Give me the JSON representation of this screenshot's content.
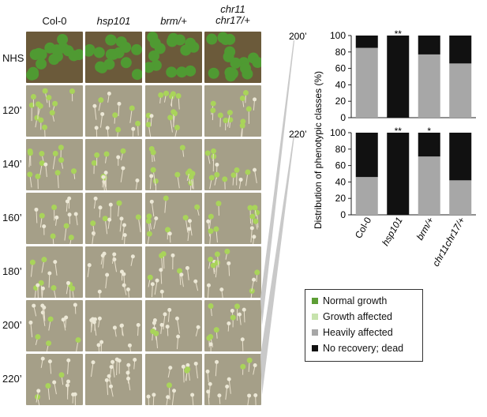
{
  "columns": [
    {
      "label": "Col-0",
      "italic": false
    },
    {
      "label": "hsp101",
      "italic": true
    },
    {
      "label": "brm/+",
      "italic": true
    },
    {
      "label": "chr11\nchr17/+",
      "italic": true
    }
  ],
  "rows": [
    "NHS",
    "120’",
    "140’",
    "160’",
    "180’",
    "200’",
    "220’"
  ],
  "chart_data": [
    {
      "type": "bar",
      "title": "",
      "panel_label": "200’",
      "xlabel": "",
      "ylabel": "Distribution of phenotypic classes (%)",
      "ylim": [
        0,
        100
      ],
      "yticks": [
        "0",
        "20",
        "40",
        "60",
        "80",
        "100"
      ],
      "categories": [
        "Col-0",
        "hsp101",
        "brm/+",
        "chr11chr17/+"
      ],
      "stacked": true,
      "series": [
        {
          "name": "Normal growth",
          "color": "#5d9e35",
          "values": [
            0,
            0,
            0,
            0
          ]
        },
        {
          "name": "Growth affected",
          "color": "#c7e3ad",
          "values": [
            0,
            0,
            0,
            0
          ]
        },
        {
          "name": "Heavily affected",
          "color": "#a7a7a7",
          "values": [
            85,
            0,
            77,
            66
          ]
        },
        {
          "name": "No recovery; dead",
          "color": "#111111",
          "values": [
            15,
            100,
            23,
            34
          ]
        }
      ],
      "annotations": [
        "",
        "**",
        "",
        ""
      ]
    },
    {
      "type": "bar",
      "title": "",
      "panel_label": "220’",
      "xlabel": "",
      "ylabel": "Distribution of phenotypic classes (%)",
      "ylim": [
        0,
        100
      ],
      "yticks": [
        "0",
        "20",
        "40",
        "60",
        "80",
        "100"
      ],
      "categories": [
        "Col-0",
        "hsp101",
        "brm/+",
        "chr11chr17/+"
      ],
      "stacked": true,
      "series": [
        {
          "name": "Normal growth",
          "color": "#5d9e35",
          "values": [
            0,
            0,
            0,
            0
          ]
        },
        {
          "name": "Growth affected",
          "color": "#c7e3ad",
          "values": [
            0,
            0,
            0,
            0
          ]
        },
        {
          "name": "Heavily affected",
          "color": "#a7a7a7",
          "values": [
            46,
            0,
            71,
            42
          ]
        },
        {
          "name": "No recovery; dead",
          "color": "#111111",
          "values": [
            54,
            100,
            29,
            58
          ]
        }
      ],
      "annotations": [
        "",
        "**",
        "*",
        ""
      ]
    }
  ],
  "legend": [
    {
      "label": "Normal growth",
      "color": "#5d9e35"
    },
    {
      "label": "Growth affected",
      "color": "#c7e3ad"
    },
    {
      "label": "Heavily affected",
      "color": "#a7a7a7"
    },
    {
      "label": "No recovery; dead",
      "color": "#111111"
    }
  ]
}
